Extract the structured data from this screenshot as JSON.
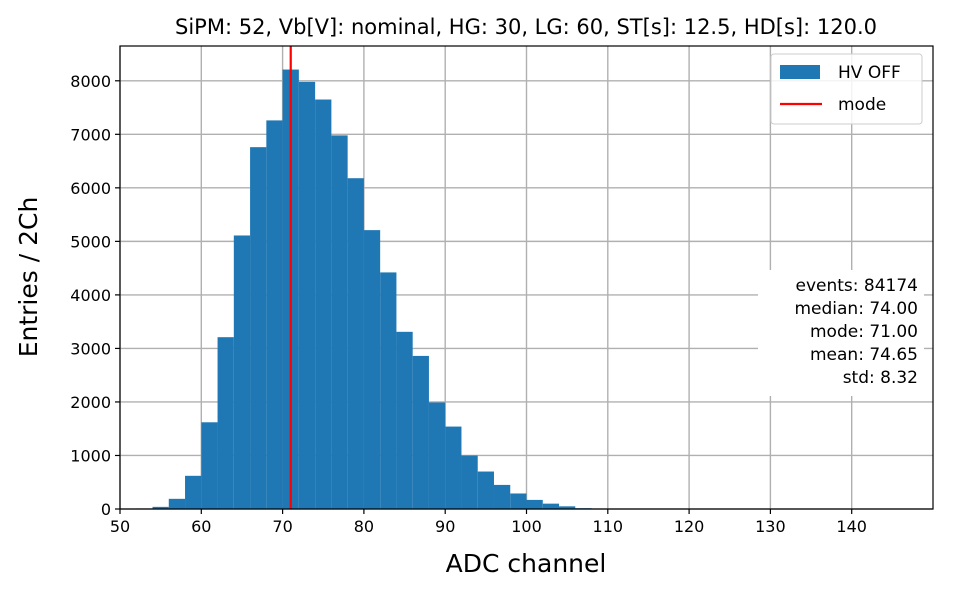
{
  "chart_data": {
    "type": "bar",
    "title": "SiPM: 52, Vb[V]: nominal, HG: 30, LG: 60, ST[s]: 12.5, HD[s]: 120.0",
    "xlabel": "ADC channel",
    "ylabel": "Entries / 2Ch",
    "xlim": [
      50,
      150
    ],
    "ylim": [
      0,
      8650
    ],
    "xticks": [
      50,
      60,
      70,
      80,
      90,
      100,
      110,
      120,
      130,
      140
    ],
    "yticks": [
      0,
      1000,
      2000,
      3000,
      4000,
      5000,
      6000,
      7000,
      8000
    ],
    "grid": true,
    "bin_width": 2,
    "bin_edges_start": [
      52,
      54,
      56,
      58,
      60,
      62,
      64,
      66,
      68,
      70,
      72,
      74,
      76,
      78,
      80,
      82,
      84,
      86,
      88,
      90,
      92,
      94,
      96,
      98,
      100,
      102,
      104,
      106
    ],
    "values": [
      10,
      40,
      190,
      620,
      1620,
      3210,
      5110,
      6760,
      7260,
      8210,
      7980,
      7650,
      6980,
      6180,
      5210,
      4420,
      3310,
      2860,
      1990,
      1540,
      1000,
      700,
      450,
      290,
      170,
      100,
      50,
      15
    ],
    "series": [
      {
        "name": "HV OFF",
        "color": "#1f77b4"
      }
    ],
    "mode_line": {
      "name": "mode",
      "x": 71.0,
      "color": "#ff0000"
    },
    "legend_position": "top-right",
    "stats": {
      "events": "events: 84174",
      "median": "median: 74.00",
      "mode": "mode: 71.00",
      "mean": "mean: 74.65",
      "std": "std: 8.32"
    }
  }
}
